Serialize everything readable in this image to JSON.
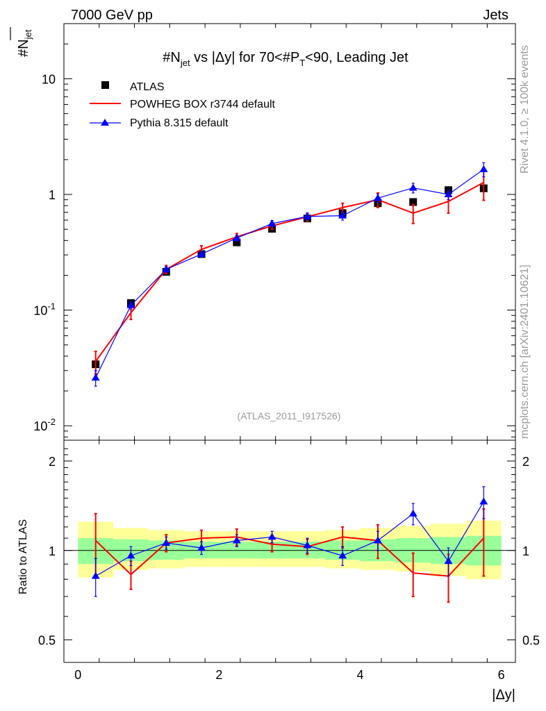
{
  "header": {
    "left": "7000 GeV pp",
    "right": "Jets"
  },
  "title": {
    "part1": "#N",
    "sub1": "jet",
    "part2": " vs |Δy| for 70<#P",
    "sub2": "T",
    "part3": "<90, Leading Jet"
  },
  "y_axis_label": {
    "main": "#N",
    "sub": "jet"
  },
  "ratio_ylabel": "Ratio to ATLAS",
  "xlabel": "|Δy|",
  "watermark": "(ATLAS_2011_I917526)",
  "side_text": {
    "rivet": "Rivet 4.1.0, ≥ 100k events",
    "mcplots": "mcplots.cern.ch [arXiv:2401.10621]"
  },
  "legend": {
    "atlas": "ATLAS",
    "powheg": "POWHEG BOX r3744 default",
    "pythia": "Pythia 8.315 default"
  },
  "colors": {
    "powheg": "#ff0000",
    "pythia": "#0000ff",
    "data": "#000000",
    "band_outer": "#ffff99",
    "band_inner": "#99ff99"
  },
  "chart_data": {
    "type": "line",
    "x_edges": [
      0,
      0.5,
      1,
      1.5,
      2,
      2.5,
      3,
      3.5,
      4,
      4.5,
      5,
      5.5,
      6
    ],
    "x": [
      0.25,
      0.75,
      1.25,
      1.75,
      2.25,
      2.75,
      3.25,
      3.75,
      4.25,
      4.75,
      5.25,
      5.75
    ],
    "xlim": [
      -0.2,
      6.2
    ],
    "ylim": [
      0.0075,
      30
    ],
    "yscale": "log",
    "x_ticks": [
      "0",
      "2",
      "4",
      "6"
    ],
    "y_ticks": [
      {
        "base": "10",
        "exp": "-2"
      },
      {
        "base": "10",
        "exp": "-1"
      },
      {
        "base": "1",
        "exp": ""
      },
      {
        "base": "10",
        "exp": ""
      }
    ],
    "series": [
      {
        "name": "ATLAS",
        "values": [
          0.034,
          0.115,
          0.214,
          0.305,
          0.385,
          0.505,
          0.62,
          0.69,
          0.84,
          0.86,
          1.09,
          1.13
        ]
      },
      {
        "name": "POWHEG BOX r3744 default",
        "values": [
          0.036,
          0.095,
          0.225,
          0.335,
          0.43,
          0.535,
          0.64,
          0.77,
          0.9,
          0.69,
          0.87,
          1.27
        ],
        "err": [
          0.008,
          0.012,
          0.018,
          0.025,
          0.03,
          0.035,
          0.05,
          0.07,
          0.13,
          0.13,
          0.18,
          0.38
        ]
      },
      {
        "name": "Pythia 8.315 default",
        "values": [
          0.026,
          0.11,
          0.225,
          0.305,
          0.42,
          0.56,
          0.645,
          0.655,
          0.93,
          1.14,
          1.0,
          1.65
        ],
        "err": [
          0.004,
          0.008,
          0.012,
          0.018,
          0.025,
          0.035,
          0.045,
          0.055,
          0.08,
          0.11,
          0.1,
          0.23
        ]
      }
    ],
    "ratio": {
      "ylabel": "Ratio to ATLAS",
      "ylim": [
        0.42,
        2.35
      ],
      "yscale": "log",
      "y_ticks": [
        "0.5",
        "1",
        "2"
      ],
      "band_inner": [
        [
          0.9,
          1.1
        ],
        [
          0.92,
          1.09
        ],
        [
          0.93,
          1.08
        ],
        [
          0.94,
          1.07
        ],
        [
          0.94,
          1.07
        ],
        [
          0.94,
          1.07
        ],
        [
          0.94,
          1.07
        ],
        [
          0.93,
          1.08
        ],
        [
          0.92,
          1.09
        ],
        [
          0.91,
          1.1
        ],
        [
          0.9,
          1.11
        ],
        [
          0.89,
          1.12
        ]
      ],
      "band_outer": [
        [
          0.81,
          1.25
        ],
        [
          0.86,
          1.19
        ],
        [
          0.87,
          1.17
        ],
        [
          0.88,
          1.16
        ],
        [
          0.88,
          1.16
        ],
        [
          0.88,
          1.16
        ],
        [
          0.88,
          1.16
        ],
        [
          0.87,
          1.17
        ],
        [
          0.86,
          1.19
        ],
        [
          0.85,
          1.21
        ],
        [
          0.82,
          1.23
        ],
        [
          0.8,
          1.26
        ]
      ],
      "powheg": [
        1.08,
        0.83,
        1.06,
        1.1,
        1.11,
        1.05,
        1.03,
        1.11,
        1.08,
        0.84,
        0.82,
        1.1
      ],
      "powheg_err": [
        0.25,
        0.09,
        0.07,
        0.07,
        0.07,
        0.06,
        0.06,
        0.09,
        0.14,
        0.14,
        0.15,
        0.28
      ],
      "pythia": [
        0.82,
        0.96,
        1.06,
        1.02,
        1.08,
        1.11,
        1.04,
        0.96,
        1.08,
        1.33,
        0.92,
        1.46
      ],
      "pythia_err": [
        0.12,
        0.07,
        0.05,
        0.05,
        0.05,
        0.05,
        0.06,
        0.07,
        0.08,
        0.11,
        0.1,
        0.18
      ]
    }
  }
}
